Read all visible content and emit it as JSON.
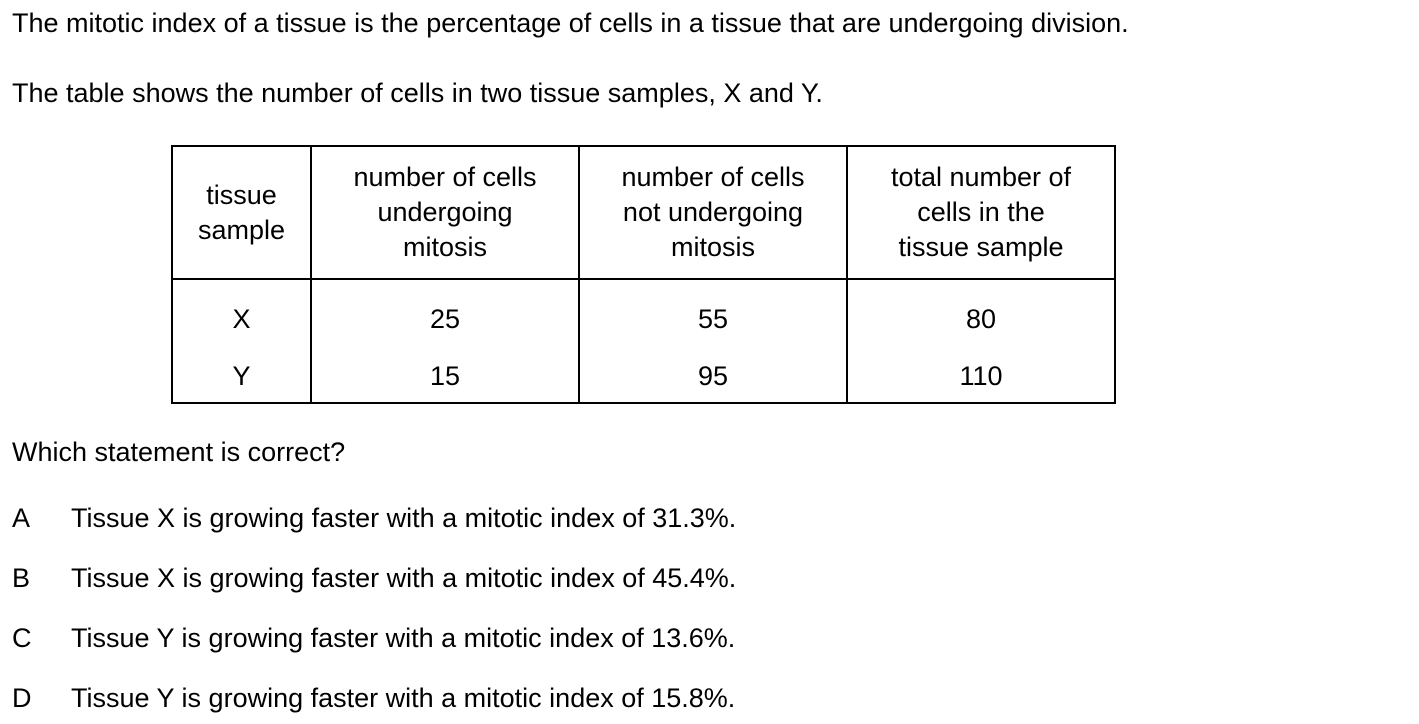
{
  "intro": "The mitotic index of a tissue is the percentage of cells in a tissue that are undergoing division.",
  "table_caption": "The table shows the number of cells in two tissue samples, X and Y.",
  "table": {
    "headers": [
      [
        "tissue",
        "sample"
      ],
      [
        "number of cells",
        "undergoing",
        "mitosis"
      ],
      [
        "number of cells",
        "not undergoing",
        "mitosis"
      ],
      [
        "total number of",
        "cells in the",
        "tissue sample"
      ]
    ],
    "rows": [
      [
        "X",
        "25",
        "55",
        "80"
      ],
      [
        "Y",
        "15",
        "95",
        "110"
      ]
    ]
  },
  "question": "Which statement is correct?",
  "options": [
    {
      "letter": "A",
      "text": "Tissue X is growing faster with a mitotic index of 31.3%."
    },
    {
      "letter": "B",
      "text": "Tissue X is growing faster with a mitotic index of 45.4%."
    },
    {
      "letter": "C",
      "text": "Tissue Y is growing faster with a mitotic index of 13.6%."
    },
    {
      "letter": "D",
      "text": "Tissue Y is growing faster with a mitotic index of 15.8%."
    }
  ]
}
